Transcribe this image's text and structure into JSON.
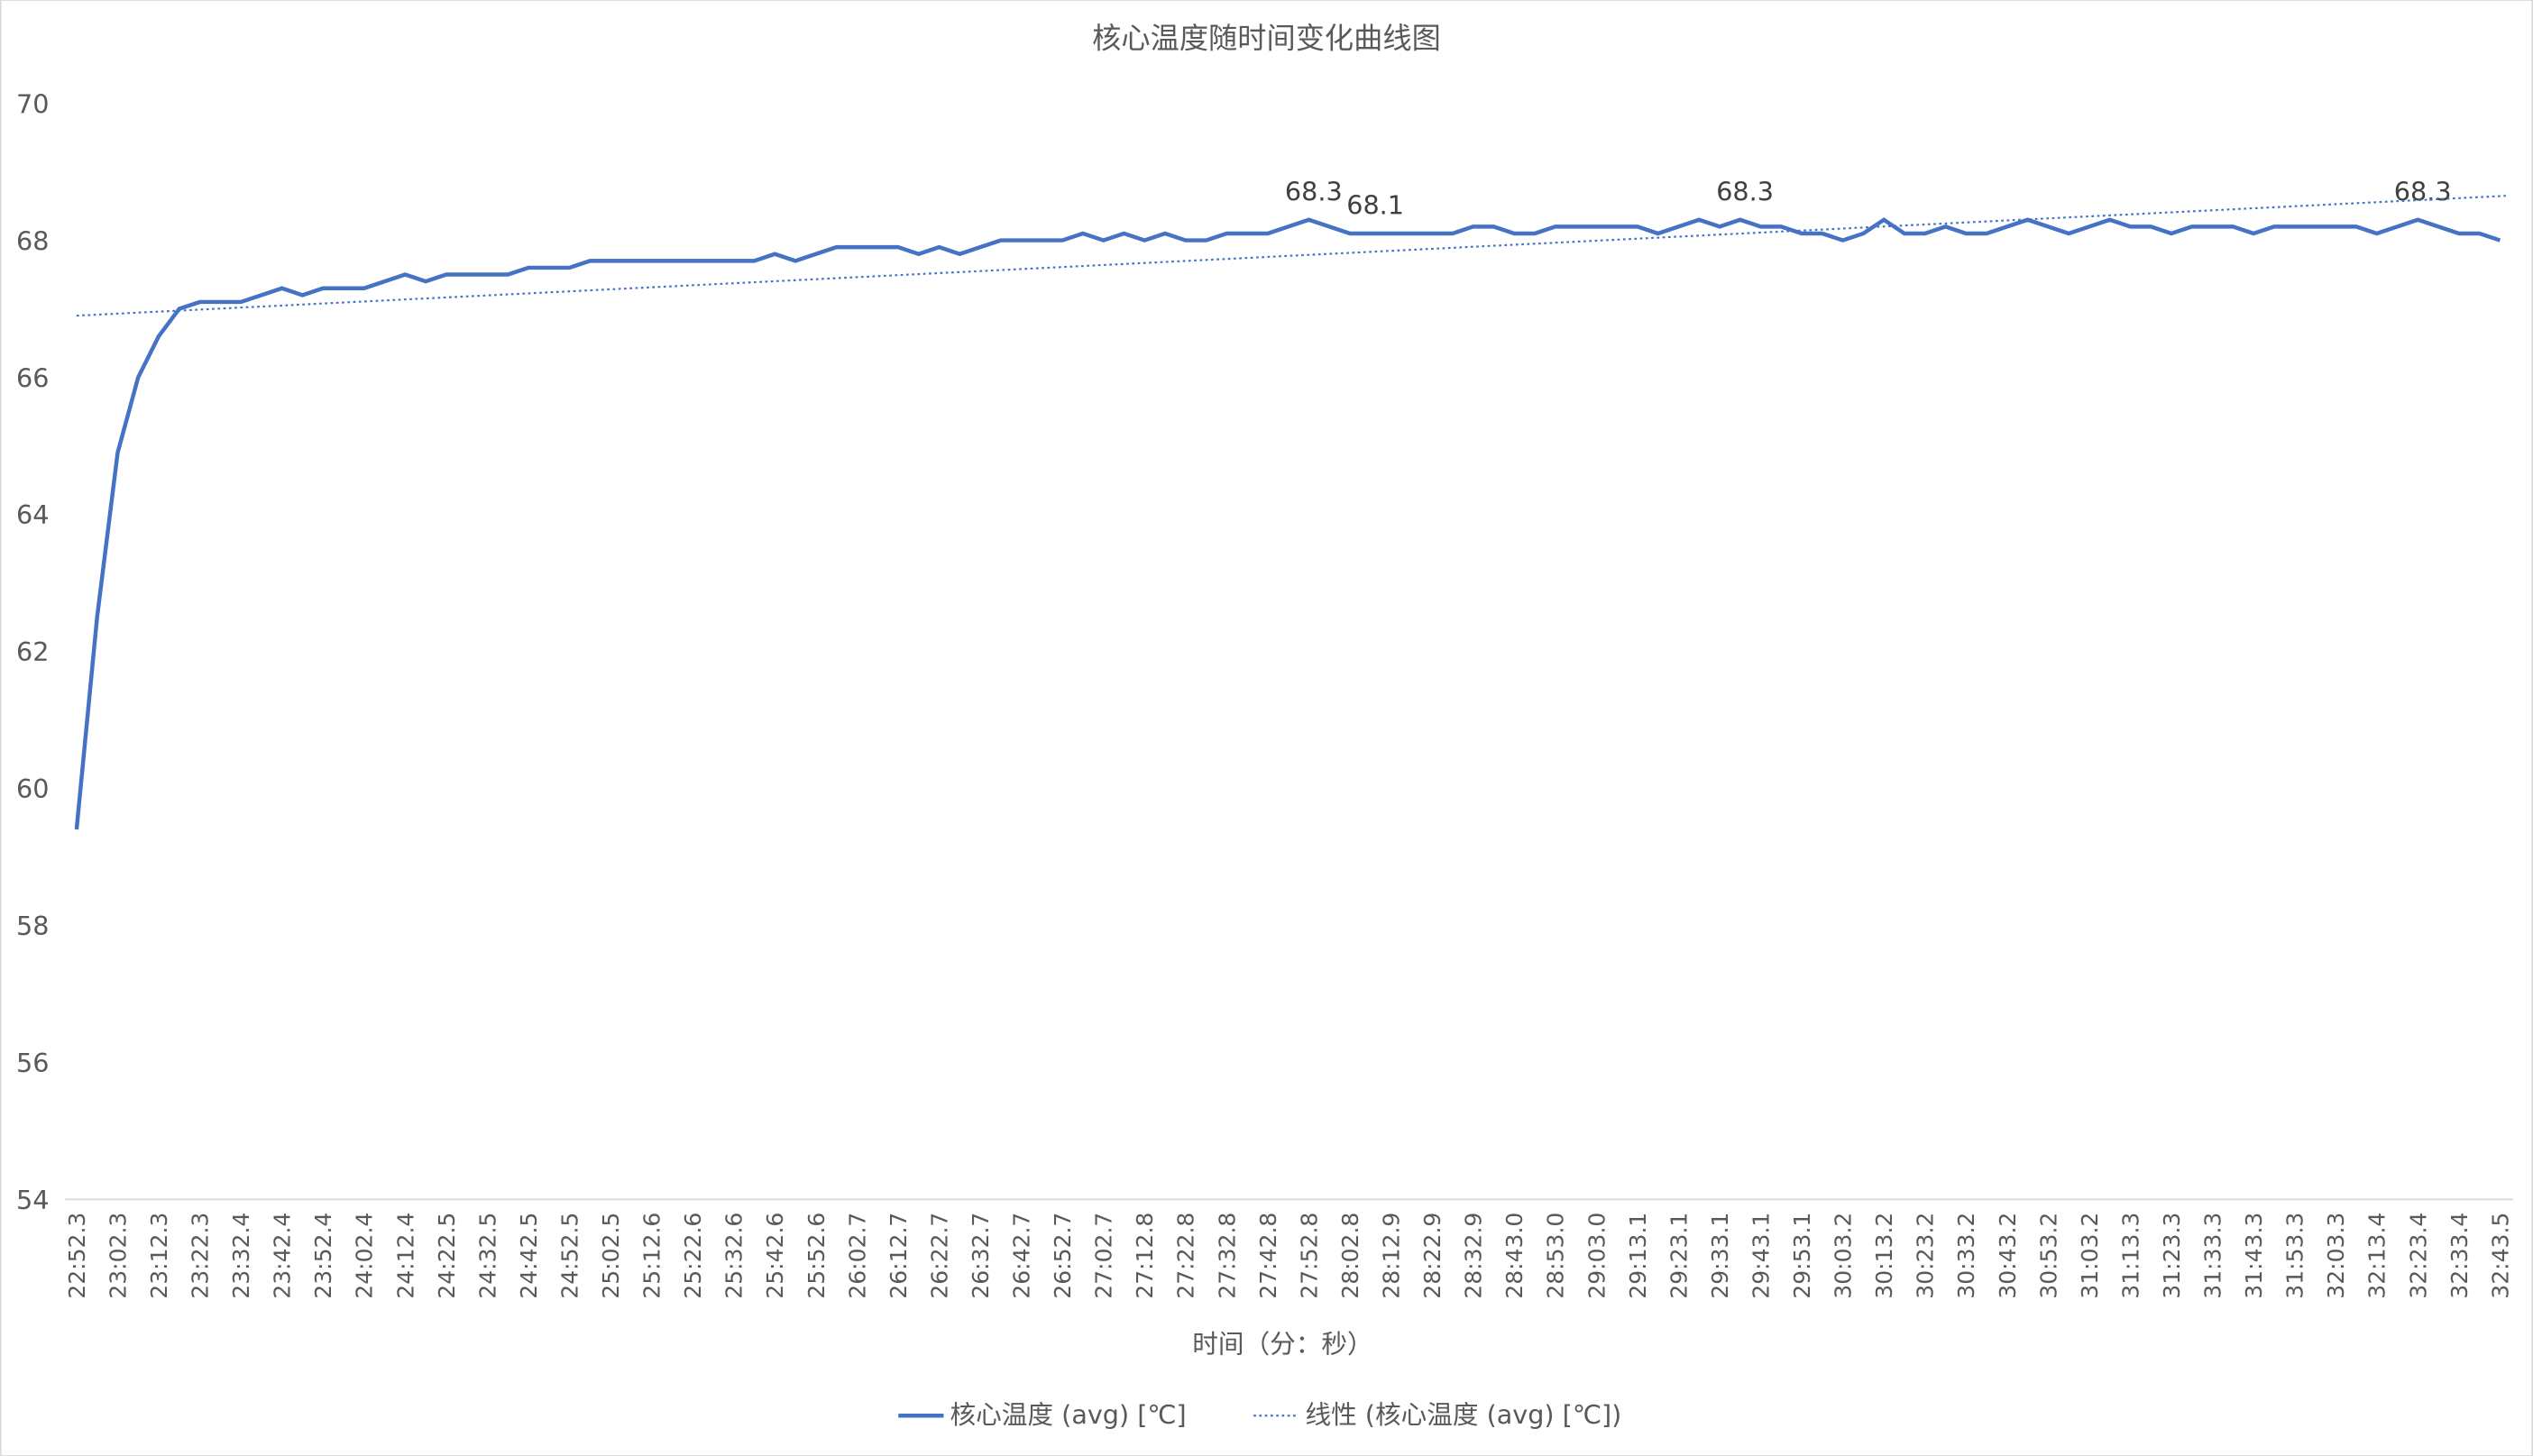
{
  "chart_data": {
    "type": "line",
    "title": "核心温度随时间变化曲线图",
    "x_label": "时间（分：秒）",
    "categories": [
      "22:52.3",
      null,
      "23:02.3",
      null,
      "23:12.3",
      null,
      "23:22.3",
      null,
      "23:32.4",
      null,
      "23:42.4",
      null,
      "23:52.4",
      null,
      "24:02.4",
      null,
      "24:12.4",
      null,
      "24:22.5",
      null,
      "24:32.5",
      null,
      "24:42.5",
      null,
      "24:52.5",
      null,
      "25:02.5",
      null,
      "25:12.6",
      null,
      "25:22.6",
      null,
      "25:32.6",
      null,
      "25:42.6",
      null,
      "25:52.6",
      null,
      "26:02.7",
      null,
      "26:12.7",
      null,
      "26:22.7",
      null,
      "26:32.7",
      null,
      "26:42.7",
      null,
      "26:52.7",
      null,
      "27:02.7",
      null,
      "27:12.8",
      null,
      "27:22.8",
      null,
      "27:32.8",
      null,
      "27:42.8",
      null,
      "27:52.8",
      null,
      "28:02.8",
      null,
      "28:12.9",
      null,
      "28:22.9",
      null,
      "28:32.9",
      null,
      "28:43.0",
      null,
      "28:53.0",
      null,
      "29:03.0",
      null,
      "29:13.1",
      null,
      "29:23.1",
      null,
      "29:33.1",
      null,
      "29:43.1",
      null,
      "29:53.1",
      null,
      "30:03.2",
      null,
      "30:13.2",
      null,
      "30:23.2",
      null,
      "30:33.2",
      null,
      "30:43.2",
      null,
      "30:53.2",
      null,
      "31:03.2",
      null,
      "31:13.3",
      null,
      "31:23.3",
      null,
      "31:33.3",
      null,
      "31:43.3",
      null,
      "31:53.3",
      null,
      "32:03.3",
      null,
      "32:13.4",
      null,
      "32:23.4",
      null,
      "32:33.4",
      null,
      "32:43.5"
    ],
    "series": [
      {
        "name": "核心温度 (avg) [℃]",
        "color": "#4472c4",
        "values": [
          59.4,
          62.5,
          64.9,
          66.0,
          66.6,
          67.0,
          67.1,
          67.1,
          67.1,
          67.2,
          67.3,
          67.2,
          67.3,
          67.3,
          67.3,
          67.4,
          67.5,
          67.4,
          67.5,
          67.5,
          67.5,
          67.5,
          67.6,
          67.6,
          67.6,
          67.7,
          67.7,
          67.7,
          67.7,
          67.7,
          67.7,
          67.7,
          67.7,
          67.7,
          67.8,
          67.7,
          67.8,
          67.9,
          67.9,
          67.9,
          67.9,
          67.8,
          67.9,
          67.8,
          67.9,
          68.0,
          68.0,
          68.0,
          68.0,
          68.1,
          68.0,
          68.1,
          68.0,
          68.1,
          68.0,
          68.0,
          68.1,
          68.1,
          68.1,
          68.2,
          68.3,
          68.2,
          68.1,
          68.1,
          68.1,
          68.1,
          68.1,
          68.1,
          68.2,
          68.2,
          68.1,
          68.1,
          68.2,
          68.2,
          68.2,
          68.2,
          68.2,
          68.1,
          68.2,
          68.3,
          68.2,
          68.3,
          68.2,
          68.2,
          68.1,
          68.1,
          68.0,
          68.1,
          68.3,
          68.1,
          68.1,
          68.2,
          68.1,
          68.1,
          68.2,
          68.3,
          68.2,
          68.1,
          68.2,
          68.3,
          68.2,
          68.2,
          68.1,
          68.2,
          68.2,
          68.2,
          68.1,
          68.2,
          68.2,
          68.2,
          68.2,
          68.2,
          68.1,
          68.2,
          68.3,
          68.2,
          68.1,
          68.1,
          68.0
        ],
        "value_labels": [
          null,
          null,
          null,
          null,
          null,
          null,
          null,
          null,
          null,
          null,
          null,
          null,
          null,
          null,
          null,
          null,
          null,
          null,
          null,
          null,
          null,
          null,
          null,
          null,
          null,
          null,
          null,
          null,
          null,
          null,
          null,
          null,
          null,
          null,
          null,
          null,
          null,
          null,
          null,
          null,
          null,
          null,
          null,
          null,
          null,
          null,
          null,
          null,
          null,
          null,
          null,
          null,
          null,
          null,
          null,
          null,
          null,
          null,
          null,
          null,
          "68.3",
          null,
          null,
          "68.1",
          null,
          null,
          null,
          null,
          null,
          null,
          null,
          null,
          null,
          null,
          null,
          null,
          null,
          null,
          null,
          null,
          null,
          "68.3",
          null,
          null,
          null,
          null,
          null,
          null,
          null,
          null,
          null,
          null,
          null,
          null,
          null,
          null,
          null,
          null,
          null,
          null,
          null,
          null,
          null,
          null,
          null,
          null,
          null,
          null,
          null,
          null,
          null,
          null,
          null,
          null,
          "68.3",
          null,
          null,
          null,
          null
        ]
      }
    ],
    "trendline": {
      "name": "线性 (核心温度 (avg) [℃])",
      "color": "#4472c4",
      "style": "dotted",
      "values": [
        66.9,
        68.65
      ]
    },
    "ylim": [
      54,
      70
    ],
    "yticks": [
      54,
      56,
      58,
      60,
      62,
      64,
      66,
      68,
      70
    ],
    "grid": false,
    "legend": "bottom"
  }
}
